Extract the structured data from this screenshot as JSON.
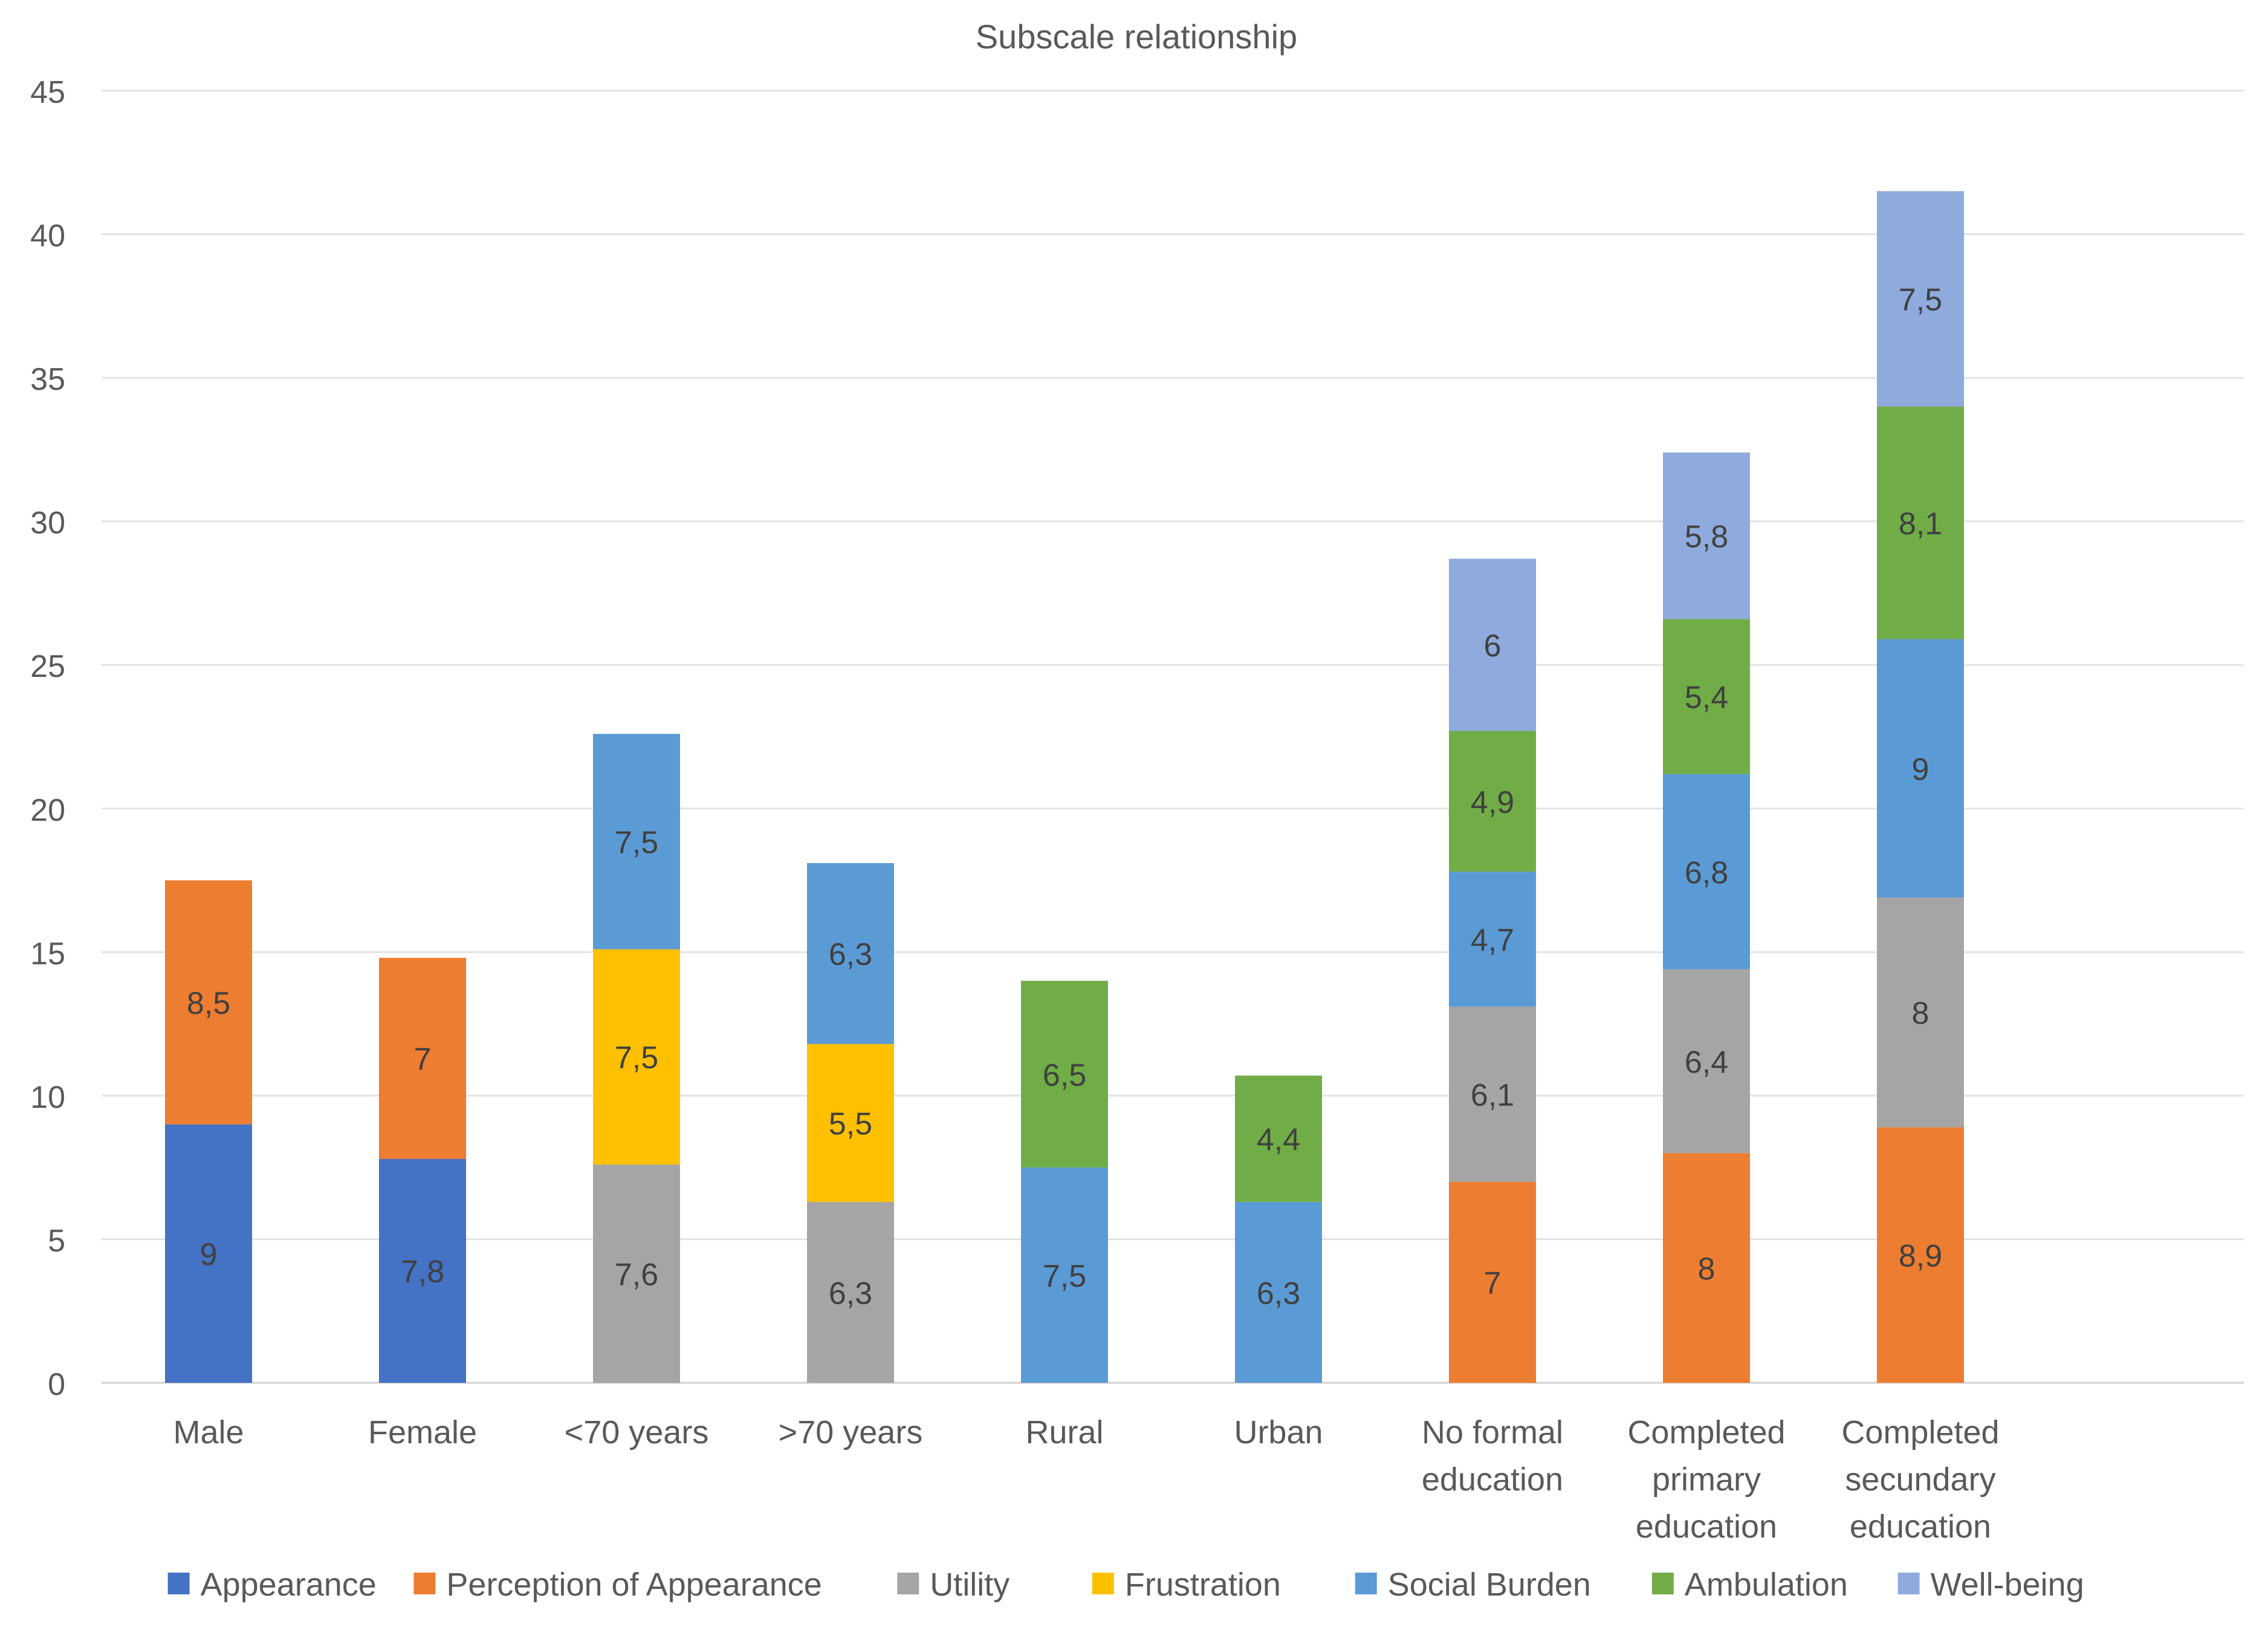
{
  "chart_data": {
    "type": "bar",
    "stacked": true,
    "title": "Subscale relationship",
    "xlabel": "",
    "ylabel": "",
    "ylim": [
      0,
      45
    ],
    "yticks": [
      0,
      5,
      10,
      15,
      20,
      25,
      30,
      35,
      40,
      45
    ],
    "grid": true,
    "legend_position": "bottom",
    "categories": [
      [
        "Male"
      ],
      [
        "Female"
      ],
      [
        "<70 years"
      ],
      [
        ">70 years"
      ],
      [
        "Rural"
      ],
      [
        "Urban"
      ],
      [
        "No formal",
        "education"
      ],
      [
        "Completed",
        "primary",
        "education"
      ],
      [
        "Completed",
        "secundary",
        "education"
      ]
    ],
    "series": [
      {
        "name": "Appearance",
        "color": "#4472C4",
        "values": [
          9,
          7.8,
          null,
          null,
          null,
          null,
          null,
          null,
          null
        ],
        "labels": [
          "9",
          "7,8",
          "",
          "",
          "",
          "",
          "",
          "",
          ""
        ]
      },
      {
        "name": "Perception of Appearance",
        "color": "#ED7D31",
        "values": [
          8.5,
          7,
          null,
          null,
          null,
          null,
          7,
          8,
          8.9
        ],
        "labels": [
          "8,5",
          "7",
          "",
          "",
          "",
          "",
          "7",
          "8",
          "8,9"
        ]
      },
      {
        "name": "Utility",
        "color": "#A5A5A5",
        "values": [
          null,
          null,
          7.6,
          6.3,
          null,
          null,
          6.1,
          6.4,
          8
        ],
        "labels": [
          "",
          "",
          "7,6",
          "6,3",
          "",
          "",
          "6,1",
          "6,4",
          "8"
        ]
      },
      {
        "name": "Frustration",
        "color": "#FFC000",
        "values": [
          null,
          null,
          7.5,
          5.5,
          null,
          null,
          null,
          null,
          null
        ],
        "labels": [
          "",
          "",
          "7,5",
          "5,5",
          "",
          "",
          "",
          "",
          ""
        ]
      },
      {
        "name": "Social Burden",
        "color": "#5B9BD5",
        "values": [
          null,
          null,
          7.5,
          6.3,
          7.5,
          6.3,
          4.7,
          6.8,
          9
        ],
        "labels": [
          "",
          "",
          "7,5",
          "6,3",
          "7,5",
          "6,3",
          "4,7",
          "6,8",
          "9"
        ]
      },
      {
        "name": "Ambulation",
        "color": "#70AD47",
        "values": [
          null,
          null,
          null,
          null,
          6.5,
          4.4,
          4.9,
          5.4,
          8.1
        ],
        "labels": [
          "",
          "",
          "",
          "",
          "6,5",
          "4,4",
          "4,9",
          "5,4",
          "8,1"
        ]
      },
      {
        "name": "Well-being",
        "color": "#8FAADC",
        "values": [
          null,
          null,
          null,
          null,
          null,
          null,
          6,
          5.8,
          7.5
        ],
        "labels": [
          "",
          "",
          "",
          "",
          "",
          "",
          "6",
          "5,8",
          "7,5"
        ]
      }
    ]
  }
}
